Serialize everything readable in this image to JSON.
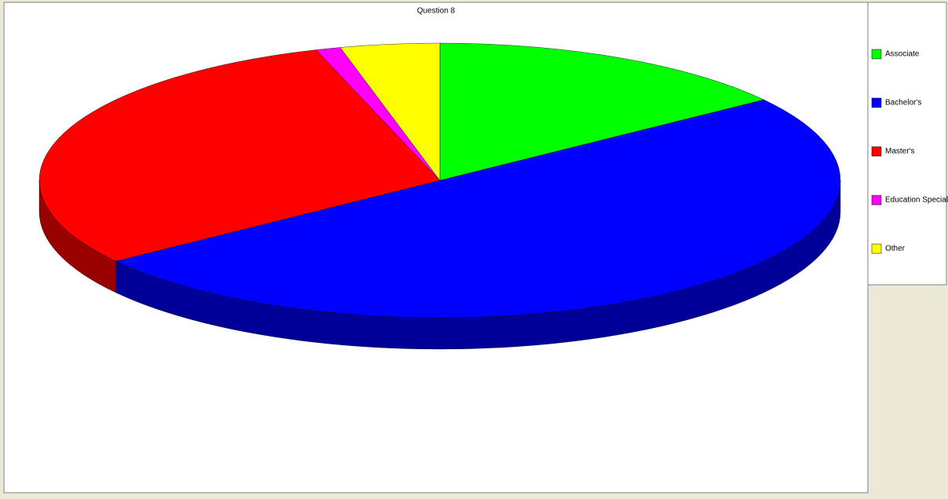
{
  "chart_data": {
    "type": "pie",
    "title": "Question 8",
    "categories": [
      "Associate",
      "Bachelor's",
      "Master's",
      "Education Specialist",
      "Other"
    ],
    "values": [
      15,
      50,
      30,
      1,
      4
    ],
    "colors": [
      "#00ff00",
      "#0000ff",
      "#ff0000",
      "#ff00ff",
      "#ffff00"
    ]
  }
}
